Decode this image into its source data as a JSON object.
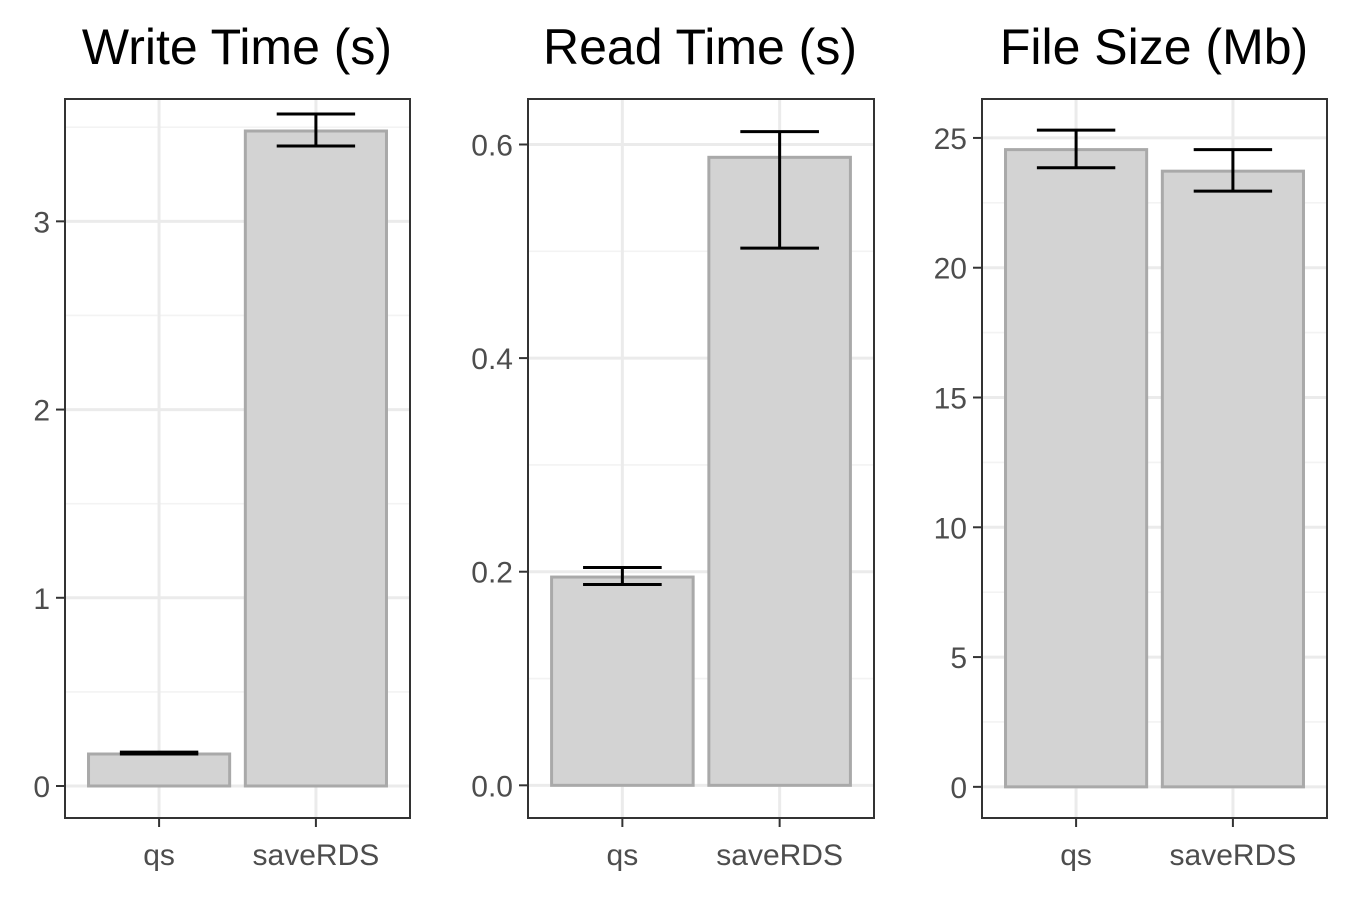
{
  "style": {
    "bar_fill": "#d3d3d3",
    "bar_outline": "#a9a9a9",
    "errorbar_color": "#000000",
    "grid_color": "#ebebeb"
  },
  "chart_data": [
    {
      "type": "bar",
      "title": "Write Time (s)",
      "categories": [
        "qs",
        "saveRDS"
      ],
      "values": [
        0.17,
        3.48
      ],
      "error_low": [
        0.17,
        3.4
      ],
      "error_high": [
        0.18,
        3.57
      ],
      "ylim": [
        -0.17,
        3.65
      ],
      "yticks": [
        0,
        1,
        2,
        3
      ],
      "ytick_labels": [
        "0",
        "1",
        "2",
        "3"
      ],
      "grid": true
    },
    {
      "type": "bar",
      "title": "Read Time (s)",
      "categories": [
        "qs",
        "saveRDS"
      ],
      "values": [
        0.195,
        0.588
      ],
      "error_low": [
        0.188,
        0.503
      ],
      "error_high": [
        0.204,
        0.612
      ],
      "ylim": [
        -0.0306,
        0.6426
      ],
      "yticks": [
        0,
        0.2,
        0.4,
        0.6
      ],
      "ytick_labels": [
        "0.0",
        "0.2",
        "0.4",
        "0.6"
      ],
      "grid": true
    },
    {
      "type": "bar",
      "title": "File Size (Mb)",
      "categories": [
        "qs",
        "saveRDS"
      ],
      "values": [
        24.55,
        23.72
      ],
      "error_low": [
        23.85,
        22.95
      ],
      "error_high": [
        25.3,
        24.55
      ],
      "ylim": [
        -1.2,
        26.5
      ],
      "yticks": [
        0,
        5,
        10,
        15,
        20,
        25
      ],
      "ytick_labels": [
        "0",
        "5",
        "10",
        "15",
        "20",
        "25"
      ],
      "grid": true
    }
  ]
}
